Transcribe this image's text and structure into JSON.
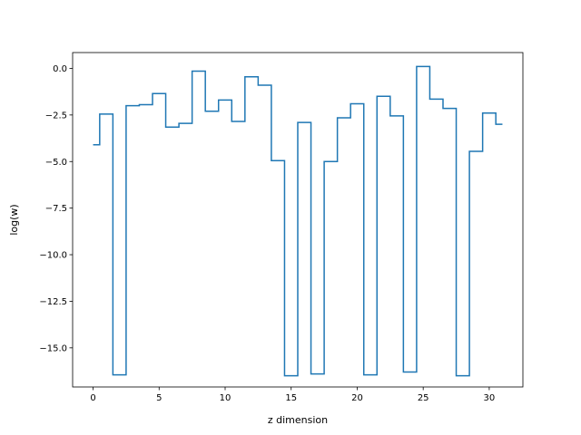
{
  "chart_data": {
    "type": "line",
    "step": "mid",
    "title": "",
    "xlabel": "z dimension",
    "ylabel": "log(w)",
    "xlim": [
      -1.55,
      32.55
    ],
    "ylim": [
      -17.1,
      0.85
    ],
    "xticks": [
      0,
      5,
      10,
      15,
      20,
      25,
      30
    ],
    "xtick_labels": [
      "0",
      "5",
      "10",
      "15",
      "20",
      "25",
      "30"
    ],
    "yticks": [
      0.0,
      -2.5,
      -5.0,
      -7.5,
      -10.0,
      -12.5,
      -15.0
    ],
    "ytick_labels": [
      "0.0",
      "−2.5",
      "−5.0",
      "−7.5",
      "−10.0",
      "−12.5",
      "−15.0"
    ],
    "grid": false,
    "color": "#1f77b4",
    "series": [
      {
        "x": [
          0,
          1,
          2,
          3,
          4,
          5,
          6,
          7,
          8,
          9,
          10,
          11,
          12,
          13,
          14,
          15,
          16,
          17,
          18,
          19,
          20,
          21,
          22,
          23,
          24,
          25,
          26,
          27,
          28,
          29,
          30,
          31
        ],
        "values": [
          -4.1,
          -2.45,
          -16.45,
          -2.0,
          -1.95,
          -1.35,
          -3.15,
          -2.95,
          -0.15,
          -2.3,
          -1.7,
          -2.85,
          -0.45,
          -0.9,
          -4.95,
          -16.5,
          -2.9,
          -16.4,
          -5.0,
          -2.65,
          -1.9,
          -16.45,
          -1.5,
          -2.55,
          -16.3,
          0.1,
          -1.65,
          -2.15,
          -16.5,
          -4.45,
          -2.4,
          -3.0
        ]
      }
    ]
  }
}
